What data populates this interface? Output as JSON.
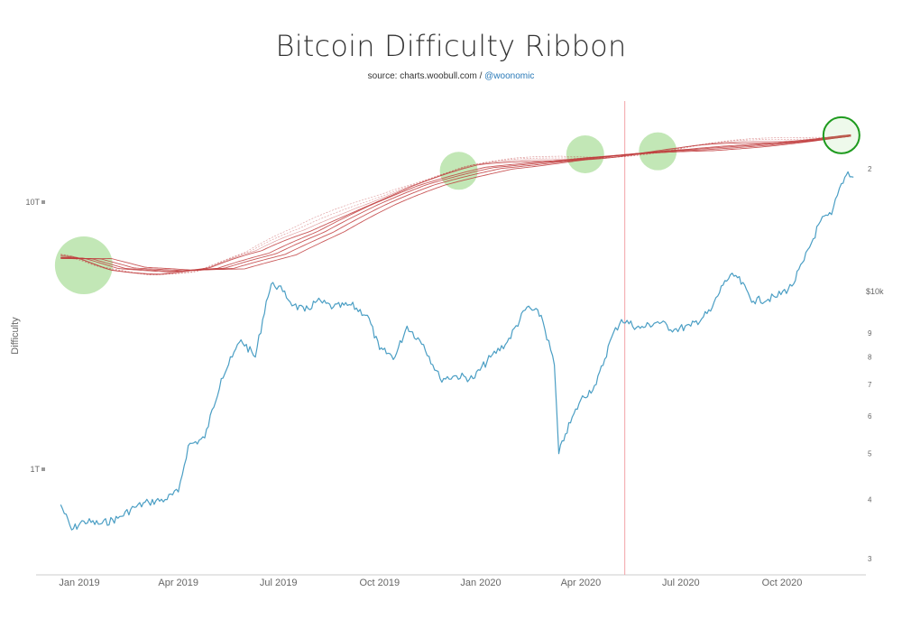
{
  "title": "Bitcoin Difficulty Ribbon",
  "subtitle": {
    "source": "source: charts.woobull.com / ",
    "handle": "@woonomic"
  },
  "colors": {
    "price_line": "#4a9ec4",
    "ribbon": "#c0393b",
    "highlight_fill": "#8fd47a",
    "highlight_stroke": "#1f9b1f",
    "marker_line": "#f2a3a8"
  },
  "chart_data": {
    "type": "line",
    "title": "Bitcoin Difficulty Ribbon",
    "subtitle": "source: charts.woobull.com / @woonomic",
    "ylabel": "Difficulty",
    "y2label": "$10k",
    "x_ticks": [
      "Jan 2019",
      "Apr 2019",
      "Jul 2019",
      "Oct 2019",
      "Jan 2020",
      "Apr 2020",
      "Jul 2020",
      "Oct 2020"
    ],
    "y_left_ticks": [
      "10T",
      "1T"
    ],
    "y_right_ticks": [
      "2",
      "9",
      "8",
      "7",
      "6",
      "5",
      "4",
      "3"
    ],
    "y_right_tick_values": [
      20000,
      9000,
      8000,
      7000,
      6000,
      5000,
      4000,
      3000
    ],
    "y_right_scale": "log",
    "grid": false,
    "vertical_marker": "2020-05-11",
    "series": [
      {
        "name": "",
        "axis": "right",
        "x": [
          "2018-12-15",
          "2018-12-25",
          "2019-01-05",
          "2019-01-20",
          "2019-02-05",
          "2019-02-20",
          "2019-03-05",
          "2019-03-20",
          "2019-04-01",
          "2019-04-10",
          "2019-04-25",
          "2019-05-10",
          "2019-05-20",
          "2019-05-28",
          "2019-06-10",
          "2019-06-20",
          "2019-06-26",
          "2019-07-05",
          "2019-07-15",
          "2019-07-25",
          "2019-08-05",
          "2019-08-20",
          "2019-09-05",
          "2019-09-20",
          "2019-10-01",
          "2019-10-15",
          "2019-10-26",
          "2019-11-10",
          "2019-11-25",
          "2019-12-10",
          "2019-12-25",
          "2020-01-10",
          "2020-01-25",
          "2020-02-12",
          "2020-02-25",
          "2020-03-08",
          "2020-03-12",
          "2020-03-18",
          "2020-04-01",
          "2020-04-15",
          "2020-04-29",
          "2020-05-08",
          "2020-05-25",
          "2020-06-10",
          "2020-06-25",
          "2020-07-10",
          "2020-07-28",
          "2020-08-10",
          "2020-08-20",
          "2020-09-05",
          "2020-09-25",
          "2020-10-10",
          "2020-10-21",
          "2020-11-05",
          "2020-11-15",
          "2020-11-24",
          "2020-11-30",
          "2020-12-05"
        ],
        "values": [
          3900,
          3450,
          3600,
          3550,
          3650,
          3850,
          3950,
          4000,
          4150,
          5200,
          5400,
          7200,
          8000,
          8700,
          8000,
          10500,
          11500,
          11000,
          10300,
          10000,
          10500,
          10200,
          10300,
          9800,
          8300,
          8000,
          9300,
          8500,
          7200,
          7300,
          7200,
          8000,
          8600,
          10200,
          9800,
          7700,
          5000,
          5500,
          6500,
          7000,
          8800,
          9600,
          9200,
          9500,
          9150,
          9300,
          10000,
          11600,
          11900,
          10500,
          10700,
          11300,
          12800,
          15500,
          16000,
          18600,
          19700,
          19200
        ]
      },
      {
        "name": "",
        "axis": "left",
        "note": "difficulty ribbon (moving averages of difficulty)",
        "x": [
          "2018-12-15",
          "2019-01-15",
          "2019-03-01",
          "2019-04-15",
          "2019-06-01",
          "2019-07-15",
          "2019-09-01",
          "2019-10-15",
          "2019-12-15",
          "2020-02-01",
          "2020-03-15",
          "2020-05-01",
          "2020-06-15",
          "2020-08-01",
          "2020-09-15",
          "2020-11-01",
          "2020-12-05"
        ],
        "values": [
          6.2,
          5.7,
          5.5,
          5.6,
          6.4,
          7.8,
          9.8,
          11.5,
          13.4,
          14.2,
          14.8,
          15.2,
          15.6,
          16.3,
          17.0,
          17.8,
          18.2
        ]
      }
    ],
    "annotations": [
      "highlighted circle ~Jan 2019",
      "highlighted circle ~Dec 2019",
      "highlighted circle ~Apr 2020",
      "highlighted circle ~Jun 2020",
      "highlighted circle (outlined) ~Nov 2020"
    ]
  }
}
